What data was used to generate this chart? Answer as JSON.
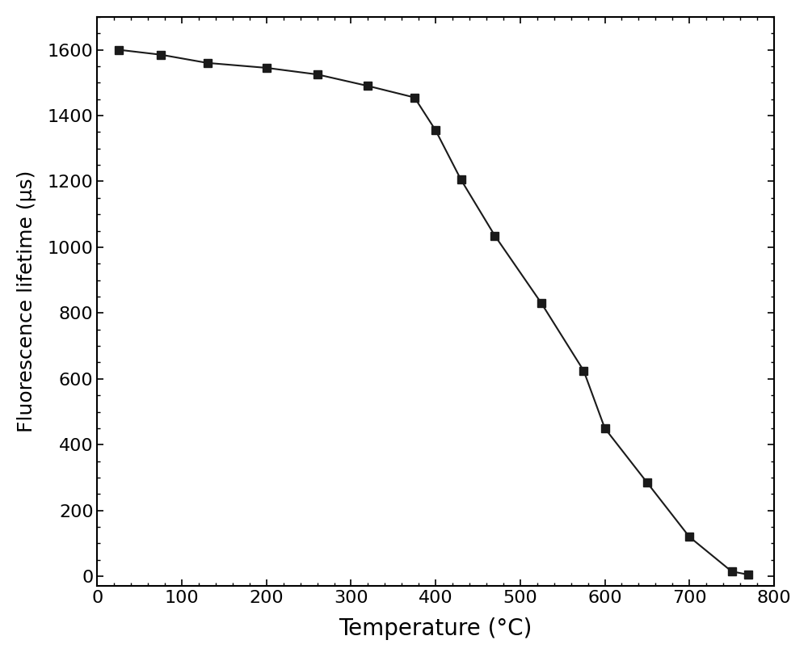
{
  "x": [
    25,
    75,
    130,
    200,
    260,
    320,
    375,
    400,
    430,
    470,
    525,
    575,
    600,
    650,
    700,
    750,
    770
  ],
  "y": [
    1600,
    1585,
    1560,
    1545,
    1525,
    1490,
    1455,
    1355,
    1205,
    1035,
    830,
    625,
    450,
    285,
    120,
    15,
    5
  ],
  "xlabel": "Temperature (°C)",
  "ylabel": "Fluorescence lifetime (μs)",
  "xlim": [
    0,
    800
  ],
  "ylim": [
    -30,
    1700
  ],
  "xticks": [
    0,
    100,
    200,
    300,
    400,
    500,
    600,
    700,
    800
  ],
  "yticks": [
    0,
    200,
    400,
    600,
    800,
    1000,
    1200,
    1400,
    1600
  ],
  "line_color": "#1a1a1a",
  "marker": "s",
  "marker_size": 7,
  "marker_color": "#1a1a1a",
  "line_width": 1.5,
  "line_style": "-",
  "background_color": "#ffffff",
  "xlabel_fontsize": 20,
  "ylabel_fontsize": 18,
  "tick_fontsize": 16
}
